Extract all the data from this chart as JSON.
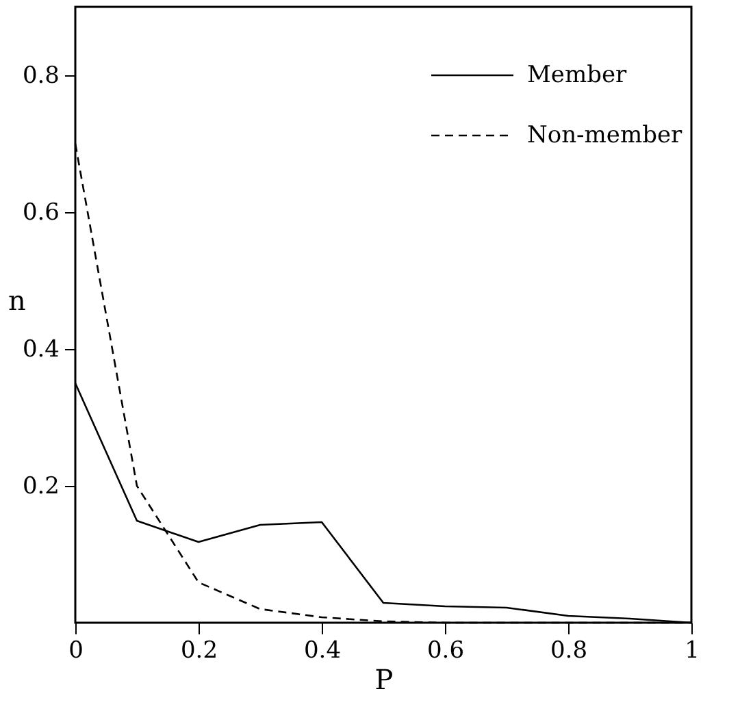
{
  "chart_data": {
    "type": "line",
    "xlabel": "P",
    "ylabel": "n",
    "x": [
      0,
      0.1,
      0.2,
      0.3,
      0.4,
      0.5,
      0.6,
      0.7,
      0.8,
      0.9,
      1.0
    ],
    "series": [
      {
        "name": "Member",
        "color": "#000000",
        "line_style": "solid",
        "values": [
          0.35,
          0.149,
          0.118,
          0.143,
          0.147,
          0.029,
          0.024,
          0.022,
          0.01,
          0.006,
          0.0
        ]
      },
      {
        "name": "Non-member",
        "color": "#000000",
        "line_style": "dashed",
        "values": [
          0.7,
          0.2,
          0.059,
          0.02,
          0.008,
          0.002,
          0.0,
          0.0,
          0.0,
          0.0,
          0.0
        ]
      }
    ],
    "xlim": [
      0,
      1
    ],
    "ylim": [
      0,
      0.9
    ],
    "xticks": [
      0,
      0.2,
      0.4,
      0.6,
      0.8,
      1
    ],
    "yticks": [
      0.2,
      0.4,
      0.6,
      0.8
    ],
    "grid": false,
    "legend": "top right",
    "marker": "none"
  }
}
